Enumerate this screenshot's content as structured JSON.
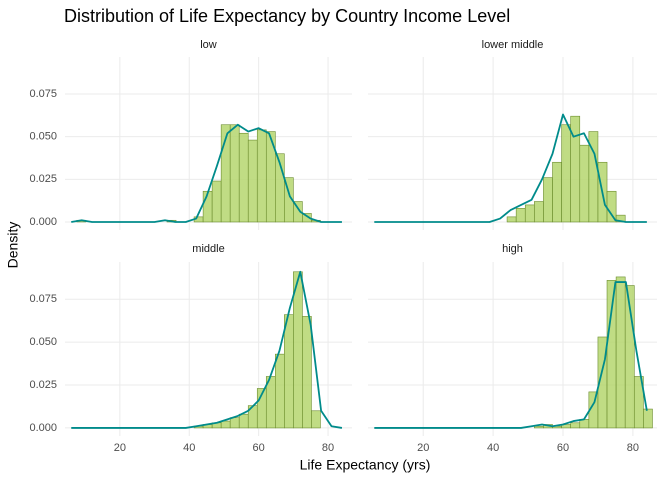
{
  "title": "Distribution of Life Expectancy by Country Income Level",
  "x_label": "Life Expectancy (yrs)",
  "y_label": "Density",
  "axes": {
    "xlim": [
      4.2,
      86.9
    ],
    "ylim": [
      -0.0047,
      0.0967
    ],
    "xticks": [
      20,
      40,
      60,
      80
    ],
    "yticks": [
      {
        "value": 0,
        "label": "0.000"
      },
      {
        "value": 0.025,
        "label": "0.025"
      },
      {
        "value": 0.05,
        "label": "0.050"
      },
      {
        "value": 0.075,
        "label": "0.075"
      }
    ],
    "grid": true
  },
  "chart_data": [
    {
      "type": "histogram",
      "title": "low",
      "color": "#b5d66e",
      "edge_color": "#6b8c2e",
      "line_color": "#008b8b",
      "bins": [
        7.6,
        10.2,
        12.8,
        15.4,
        18.0,
        20.6,
        23.2,
        25.8,
        28.4,
        31.0,
        33.6,
        36.2,
        38.8,
        41.4,
        44.0,
        46.6,
        49.2,
        51.8,
        54.4,
        57.0,
        59.6,
        62.2,
        64.8,
        67.4,
        70.0,
        72.6,
        75.2,
        77.8,
        80.4,
        83.0,
        85.6
      ],
      "values": [
        0.001,
        0,
        0,
        0,
        0,
        0,
        0,
        0,
        0,
        0,
        0.001,
        0,
        0,
        0.003,
        0.018,
        0.024,
        0.057,
        0.057,
        0.052,
        0.048,
        0.054,
        0.053,
        0.04,
        0.026,
        0.012,
        0.005,
        0.001,
        0,
        0,
        0
      ],
      "density": {
        "x": [
          6,
          9,
          12,
          15,
          18,
          21,
          24,
          27,
          30,
          33,
          36,
          39,
          42,
          45,
          48,
          51,
          54,
          57,
          60,
          63,
          66,
          69,
          72,
          75,
          78,
          81,
          84
        ],
        "values": [
          0,
          0.001,
          0,
          0,
          0,
          0,
          0,
          0,
          0,
          0.001,
          0,
          0,
          0.002,
          0.015,
          0.033,
          0.052,
          0.057,
          0.053,
          0.055,
          0.052,
          0.035,
          0.015,
          0.006,
          0.002,
          0,
          0,
          0
        ]
      }
    },
    {
      "type": "histogram",
      "title": "lower middle",
      "color": "#b5d66e",
      "edge_color": "#6b8c2e",
      "line_color": "#008b8b",
      "bins": [
        7.6,
        10.2,
        12.8,
        15.4,
        18.0,
        20.6,
        23.2,
        25.8,
        28.4,
        31.0,
        33.6,
        36.2,
        38.8,
        41.4,
        44.0,
        46.6,
        49.2,
        51.8,
        54.4,
        57.0,
        59.6,
        62.2,
        64.8,
        67.4,
        70.0,
        72.6,
        75.2,
        77.8,
        80.4,
        83.0,
        85.6
      ],
      "values": [
        0,
        0,
        0,
        0,
        0,
        0,
        0,
        0,
        0,
        0,
        0,
        0,
        0,
        0,
        0.003,
        0.008,
        0.01,
        0.012,
        0.026,
        0.035,
        0.057,
        0.062,
        0.045,
        0.053,
        0.035,
        0.018,
        0.004,
        0,
        0,
        0
      ],
      "density": {
        "x": [
          6,
          9,
          12,
          15,
          18,
          21,
          24,
          27,
          30,
          33,
          36,
          39,
          42,
          45,
          48,
          51,
          54,
          57,
          60,
          63,
          66,
          69,
          72,
          75,
          78,
          81,
          84
        ],
        "values": [
          0,
          0,
          0,
          0,
          0,
          0,
          0,
          0,
          0,
          0,
          0,
          0,
          0.002,
          0.007,
          0.01,
          0.013,
          0.025,
          0.04,
          0.063,
          0.05,
          0.052,
          0.04,
          0.01,
          0.001,
          0,
          0,
          0
        ]
      }
    },
    {
      "type": "histogram",
      "title": "middle",
      "color": "#b5d66e",
      "edge_color": "#6b8c2e",
      "line_color": "#008b8b",
      "bins": [
        7.6,
        10.2,
        12.8,
        15.4,
        18.0,
        20.6,
        23.2,
        25.8,
        28.4,
        31.0,
        33.6,
        36.2,
        38.8,
        41.4,
        44.0,
        46.6,
        49.2,
        51.8,
        54.4,
        57.0,
        59.6,
        62.2,
        64.8,
        67.4,
        70.0,
        72.6,
        75.2,
        77.8,
        80.4,
        83.0,
        85.6
      ],
      "values": [
        0,
        0,
        0,
        0,
        0,
        0,
        0,
        0,
        0,
        0,
        0,
        0,
        0,
        0.001,
        0.002,
        0.003,
        0.004,
        0.006,
        0.008,
        0.013,
        0.023,
        0.03,
        0.043,
        0.066,
        0.091,
        0.065,
        0.01,
        0,
        0,
        0
      ],
      "density": {
        "x": [
          6,
          9,
          12,
          15,
          18,
          21,
          24,
          27,
          30,
          33,
          36,
          39,
          42,
          45,
          48,
          51,
          54,
          57,
          60,
          63,
          66,
          69,
          72,
          75,
          78,
          81,
          84
        ],
        "values": [
          0,
          0,
          0,
          0,
          0,
          0,
          0,
          0,
          0,
          0,
          0,
          0,
          0.001,
          0.002,
          0.003,
          0.005,
          0.007,
          0.01,
          0.016,
          0.028,
          0.045,
          0.07,
          0.091,
          0.06,
          0.01,
          0.001,
          0
        ]
      }
    },
    {
      "type": "histogram",
      "title": "high",
      "color": "#b5d66e",
      "edge_color": "#6b8c2e",
      "line_color": "#008b8b",
      "bins": [
        7.6,
        10.2,
        12.8,
        15.4,
        18.0,
        20.6,
        23.2,
        25.8,
        28.4,
        31.0,
        33.6,
        36.2,
        38.8,
        41.4,
        44.0,
        46.6,
        49.2,
        51.8,
        54.4,
        57.0,
        59.6,
        62.2,
        64.8,
        67.4,
        70.0,
        72.6,
        75.2,
        77.8,
        80.4,
        83.0,
        85.6
      ],
      "values": [
        0,
        0,
        0,
        0,
        0,
        0,
        0,
        0,
        0,
        0,
        0,
        0,
        0,
        0,
        0,
        0,
        0,
        0.001,
        0.002,
        0.001,
        0.002,
        0.003,
        0.005,
        0.021,
        0.053,
        0.086,
        0.088,
        0.083,
        0.03,
        0.011
      ],
      "density": {
        "x": [
          6,
          9,
          12,
          15,
          18,
          21,
          24,
          27,
          30,
          33,
          36,
          39,
          42,
          45,
          48,
          51,
          54,
          57,
          60,
          63,
          66,
          69,
          72,
          75,
          78,
          81,
          84
        ],
        "values": [
          0,
          0,
          0,
          0,
          0,
          0,
          0,
          0,
          0,
          0,
          0,
          0,
          0,
          0,
          0,
          0.001,
          0.002,
          0.001,
          0.002,
          0.004,
          0.005,
          0.015,
          0.04,
          0.085,
          0.085,
          0.045,
          0.01
        ]
      }
    }
  ]
}
